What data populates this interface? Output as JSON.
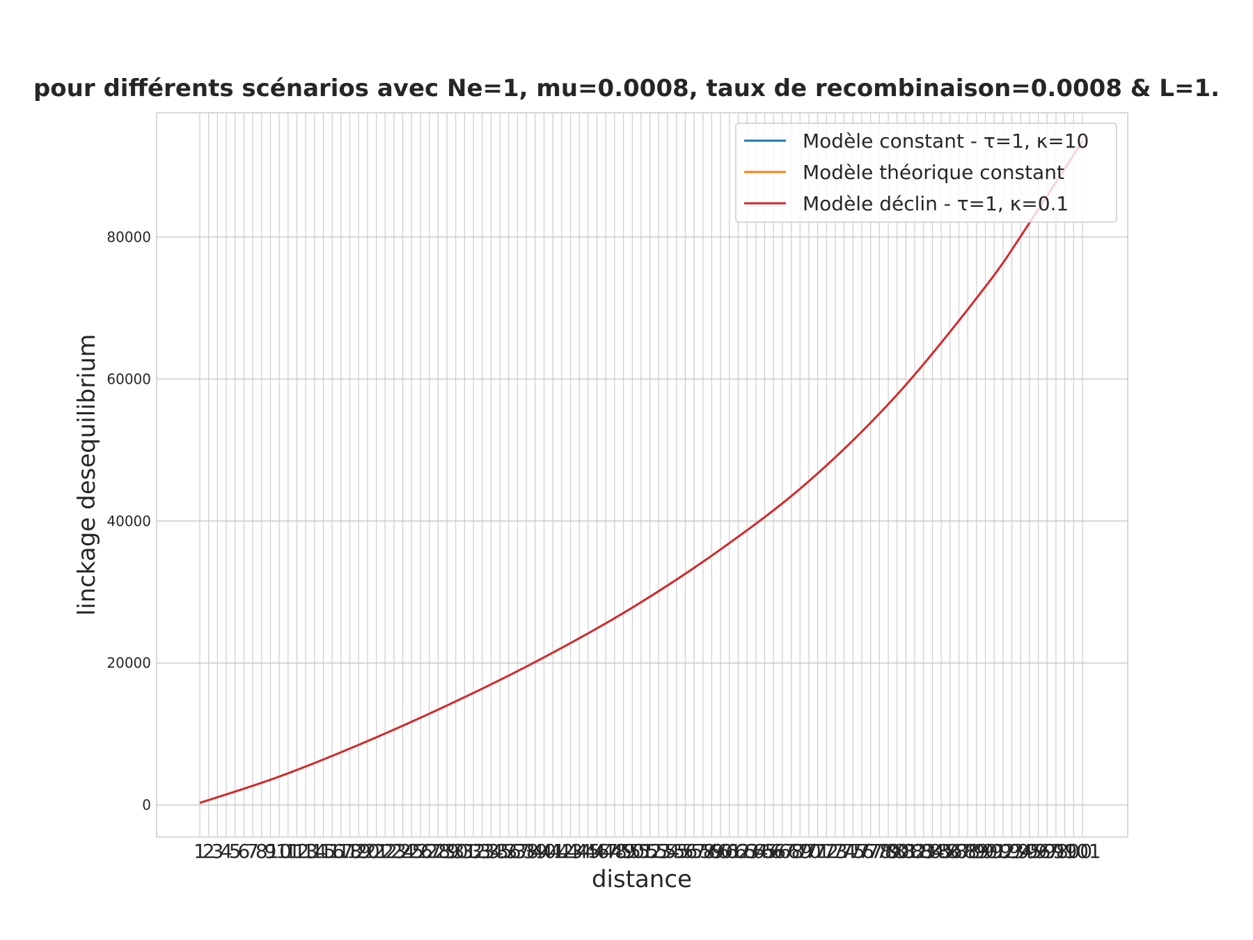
{
  "chart_data": {
    "type": "line",
    "title": "pour différents scénarios avec Ne=1, mu=0.0008, taux de recombinaison=0.0008 & L=1.",
    "xlabel": "distance",
    "ylabel": "linckage desequilibrium",
    "x_start": 1,
    "x_end": 101,
    "ylim": [
      -4500,
      97500
    ],
    "yticks": [
      0,
      20000,
      40000,
      60000,
      80000
    ],
    "grid": true,
    "legend_position": "top-right",
    "series": [
      {
        "name": "Modèle constant - τ=1, κ=10",
        "color": "#1f77b4",
        "x": [],
        "y": []
      },
      {
        "name": "Modèle théorique constant",
        "color": "#ff7f0e",
        "x": [],
        "y": []
      },
      {
        "name": "Modèle déclin - τ=1, κ=0.1",
        "color": "#d62728",
        "x": [
          1,
          10,
          20,
          30,
          40,
          50,
          60,
          70,
          80,
          90,
          95,
          101
        ],
        "y": [
          300,
          4000,
          9000,
          14600,
          20800,
          27800,
          36000,
          45600,
          57800,
          73000,
          82000,
          93500
        ]
      }
    ]
  }
}
